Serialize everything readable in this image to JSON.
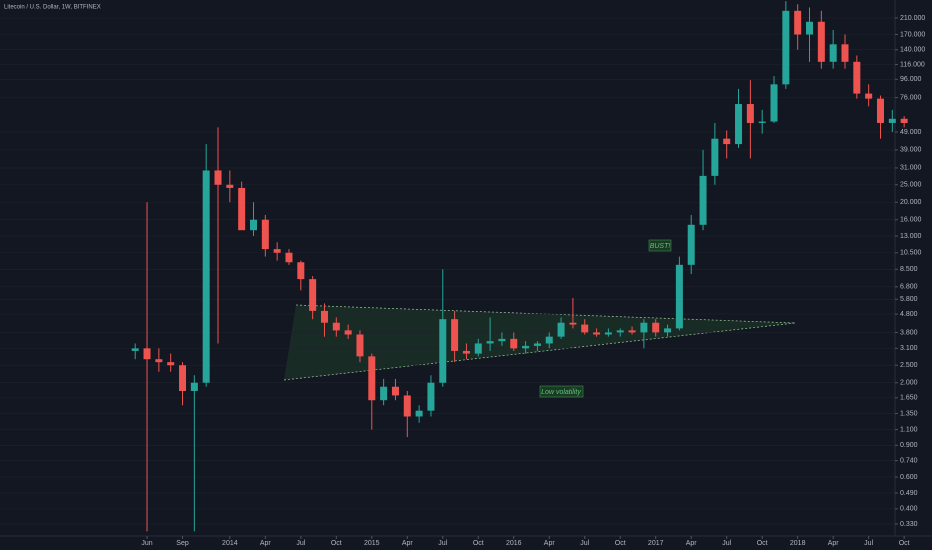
{
  "chart_data": {
    "type": "candlestick",
    "title": "Litecoin / U.S. Dollar, 1W, BITFINEX",
    "log_scale": true,
    "up_color": "#26a69a",
    "down_color": "#ef5350",
    "ylim": [
      0.283,
      264
    ],
    "yticks": [
      {
        "value": 210,
        "label": "210.000"
      },
      {
        "value": 170,
        "label": "170.000"
      },
      {
        "value": 140,
        "label": "140.000"
      },
      {
        "value": 116,
        "label": "116.000"
      },
      {
        "value": 96,
        "label": "96.000"
      },
      {
        "value": 76,
        "label": "76.000"
      },
      {
        "value": 49,
        "label": "49.000"
      },
      {
        "value": 39,
        "label": "39.000"
      },
      {
        "value": 31,
        "label": "31.000"
      },
      {
        "value": 25,
        "label": "25.000"
      },
      {
        "value": 20,
        "label": "20.000"
      },
      {
        "value": 16,
        "label": "16.000"
      },
      {
        "value": 13,
        "label": "13.000"
      },
      {
        "value": 10.5,
        "label": "10.500"
      },
      {
        "value": 8.5,
        "label": "8.500"
      },
      {
        "value": 6.8,
        "label": "6.800"
      },
      {
        "value": 5.8,
        "label": "5.800"
      },
      {
        "value": 4.8,
        "label": "4.800"
      },
      {
        "value": 3.8,
        "label": "3.800"
      },
      {
        "value": 3.1,
        "label": "3.100"
      },
      {
        "value": 2.5,
        "label": "2.500"
      },
      {
        "value": 2,
        "label": "2.000"
      },
      {
        "value": 1.65,
        "label": "1.650"
      },
      {
        "value": 1.35,
        "label": "1.350"
      },
      {
        "value": 1.1,
        "label": "1.100"
      },
      {
        "value": 0.9,
        "label": "0.900"
      },
      {
        "value": 0.74,
        "label": "0.740"
      },
      {
        "value": 0.6,
        "label": "0.600"
      },
      {
        "value": 0.49,
        "label": "0.490"
      },
      {
        "value": 0.4,
        "label": "0.400"
      },
      {
        "value": 0.33,
        "label": "0.330"
      }
    ],
    "categories": [
      "2013-05",
      "2013-06",
      "2013-07",
      "2013-08",
      "2013-09",
      "2013-10",
      "2013-11",
      "2013-12",
      "2014-01",
      "2014-02",
      "2014-03",
      "2014-04",
      "2014-05",
      "2014-06",
      "2014-07",
      "2014-08",
      "2014-09",
      "2014-10",
      "2014-11",
      "2014-12",
      "2015-01",
      "2015-02",
      "2015-03",
      "2015-04",
      "2015-05",
      "2015-06",
      "2015-07",
      "2015-08",
      "2015-09",
      "2015-10",
      "2015-11",
      "2015-12",
      "2016-01",
      "2016-02",
      "2016-03",
      "2016-04",
      "2016-05",
      "2016-06",
      "2016-07",
      "2016-08",
      "2016-09",
      "2016-10",
      "2016-11",
      "2016-12",
      "2017-01",
      "2017-02",
      "2017-03",
      "2017-04",
      "2017-05",
      "2017-06",
      "2017-07",
      "2017-08",
      "2017-09",
      "2017-10",
      "2017-11",
      "2017-12",
      "2018-01",
      "2018-02",
      "2018-03",
      "2018-04",
      "2018-05",
      "2018-06",
      "2018-07",
      "2018-08",
      "2018-09",
      "2018-10"
    ],
    "open": [
      3.0,
      3.1,
      2.7,
      2.6,
      2.5,
      1.8,
      2.0,
      30,
      25,
      24,
      14,
      16,
      11,
      10.5,
      9.3,
      7.5,
      5.0,
      4.3,
      3.9,
      3.7,
      2.8,
      1.6,
      1.9,
      1.7,
      1.3,
      1.4,
      2.0,
      4.5,
      3.0,
      2.9,
      3.3,
      3.4,
      3.5,
      3.1,
      3.2,
      3.3,
      3.6,
      4.3,
      4.2,
      3.8,
      3.7,
      3.8,
      3.9,
      3.8,
      4.3,
      3.8,
      4.0,
      9,
      15,
      28,
      45,
      42,
      70,
      55,
      56,
      90,
      230,
      170,
      200,
      120,
      150,
      120,
      80,
      75,
      55,
      58
    ],
    "high": [
      3.3,
      20,
      3.1,
      2.9,
      2.6,
      2.2,
      42,
      52,
      30,
      26,
      20,
      17,
      12,
      11,
      9.5,
      7.8,
      5.5,
      4.6,
      4.2,
      3.9,
      2.9,
      2.1,
      2.1,
      1.8,
      1.5,
      2.2,
      8.5,
      5.0,
      3.3,
      3.5,
      4.6,
      3.8,
      3.8,
      3.4,
      3.4,
      3.8,
      4.6,
      5.9,
      4.5,
      4.0,
      4.0,
      4.0,
      4.1,
      4.5,
      4.5,
      4.2,
      10,
      17,
      39,
      55,
      50,
      85,
      95,
      65,
      100,
      260,
      250,
      240,
      230,
      180,
      170,
      130,
      90,
      78,
      65,
      60
    ],
    "low": [
      2.7,
      0.3,
      2.3,
      2.3,
      1.5,
      0.3,
      1.9,
      3.3,
      20,
      15,
      13,
      10,
      9.5,
      9,
      6.5,
      4.5,
      3.6,
      3.6,
      3.5,
      2.6,
      1.1,
      1.5,
      1.6,
      1.0,
      1.2,
      1.3,
      1.9,
      2.6,
      2.7,
      2.8,
      3.0,
      3.2,
      3.0,
      2.9,
      3.0,
      3.1,
      3.5,
      4.0,
      3.7,
      3.6,
      3.6,
      3.6,
      3.7,
      3.1,
      3.6,
      3.6,
      3.9,
      8,
      14,
      25,
      35,
      40,
      35,
      48,
      55,
      85,
      140,
      120,
      110,
      110,
      110,
      75,
      68,
      45,
      49,
      52
    ],
    "close": [
      3.1,
      2.7,
      2.6,
      2.5,
      1.8,
      2.0,
      30,
      25,
      24,
      14,
      16,
      11,
      10.5,
      9.3,
      7.5,
      5.0,
      4.3,
      3.9,
      3.7,
      2.8,
      1.6,
      1.9,
      1.7,
      1.3,
      1.4,
      2.0,
      4.5,
      3.0,
      2.9,
      3.3,
      3.4,
      3.5,
      3.1,
      3.2,
      3.3,
      3.6,
      4.3,
      4.2,
      3.8,
      3.7,
      3.8,
      3.9,
      3.8,
      4.3,
      3.8,
      4.0,
      9,
      15,
      28,
      45,
      42,
      70,
      55,
      56,
      90,
      230,
      170,
      200,
      120,
      150,
      120,
      80,
      75,
      55,
      58,
      55
    ],
    "xticks": [
      {
        "value": "2013-06",
        "label": "Jun"
      },
      {
        "value": "2013-09",
        "label": "Sep"
      },
      {
        "value": "2014-01",
        "label": "2014"
      },
      {
        "value": "2014-04",
        "label": "Apr"
      },
      {
        "value": "2014-07",
        "label": "Jul"
      },
      {
        "value": "2014-10",
        "label": "Oct"
      },
      {
        "value": "2015-01",
        "label": "2015"
      },
      {
        "value": "2015-04",
        "label": "Apr"
      },
      {
        "value": "2015-07",
        "label": "Jul"
      },
      {
        "value": "2015-10",
        "label": "Oct"
      },
      {
        "value": "2016-01",
        "label": "2016"
      },
      {
        "value": "2016-04",
        "label": "Apr"
      },
      {
        "value": "2016-07",
        "label": "Jul"
      },
      {
        "value": "2016-10",
        "label": "Oct"
      },
      {
        "value": "2017-01",
        "label": "2017"
      },
      {
        "value": "2017-04",
        "label": "Apr"
      },
      {
        "value": "2017-07",
        "label": "Jul"
      },
      {
        "value": "2017-10",
        "label": "Oct"
      },
      {
        "value": "2018-01",
        "label": "2018"
      },
      {
        "value": "2018-04",
        "label": "Apr"
      },
      {
        "value": "2018-07",
        "label": "Jul"
      },
      {
        "value": "2018-10",
        "label": "Oct"
      }
    ],
    "annotations": [
      "BUST!",
      "Low volatility"
    ]
  }
}
